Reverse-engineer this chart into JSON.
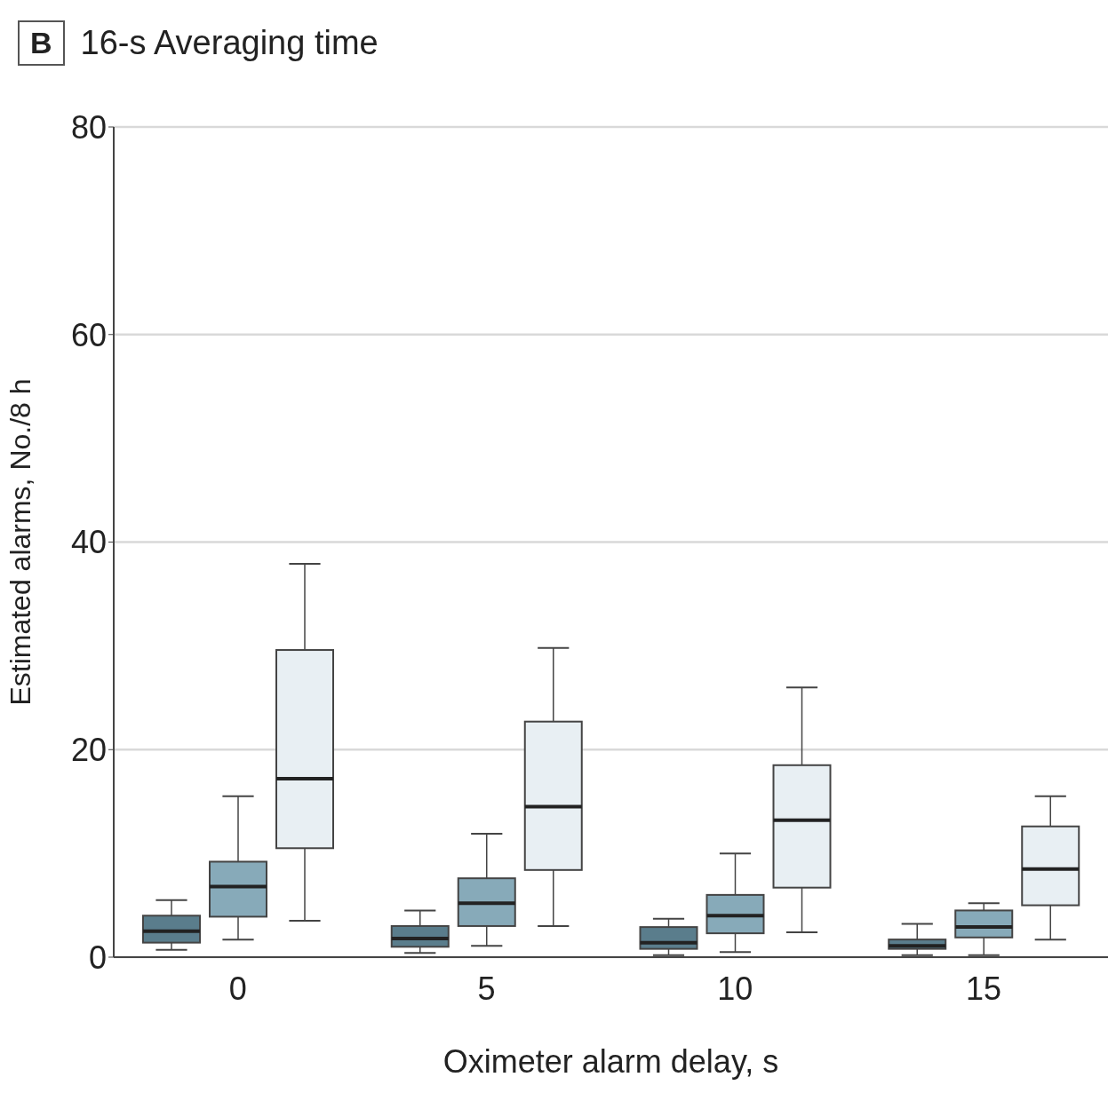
{
  "chart_data": {
    "type": "box",
    "title": "16-s Averaging time",
    "annotations": [
      "B"
    ],
    "xlabel": "Oximeter alarm delay, s",
    "ylabel": "Estimated alarms, No./8 h",
    "categories": [
      "0",
      "5",
      "10",
      "15"
    ],
    "ylim": [
      0,
      80
    ],
    "yticks": [
      0,
      20,
      40,
      60,
      80
    ],
    "grid": "y",
    "series": [
      {
        "color": "#5a7d8c",
        "boxes": [
          {
            "low": 0.7,
            "q1": 1.4,
            "median": 2.5,
            "q3": 4.0,
            "high": 5.5
          },
          {
            "low": 0.4,
            "q1": 1.0,
            "median": 1.8,
            "q3": 3.0,
            "high": 4.5
          },
          {
            "low": 0.2,
            "q1": 0.8,
            "median": 1.4,
            "q3": 2.9,
            "high": 3.7
          },
          {
            "low": 0.2,
            "q1": 0.8,
            "median": 1.1,
            "q3": 1.7,
            "high": 3.2
          }
        ]
      },
      {
        "color": "#87aab9",
        "boxes": [
          {
            "low": 1.7,
            "q1": 3.9,
            "median": 6.8,
            "q3": 9.2,
            "high": 15.5
          },
          {
            "low": 1.1,
            "q1": 3.0,
            "median": 5.2,
            "q3": 7.6,
            "high": 11.9
          },
          {
            "low": 0.5,
            "q1": 2.3,
            "median": 4.0,
            "q3": 6.0,
            "high": 10.0
          },
          {
            "low": 0.2,
            "q1": 1.9,
            "median": 2.9,
            "q3": 4.5,
            "high": 5.2
          }
        ]
      },
      {
        "color": "#e8eff3",
        "boxes": [
          {
            "low": 3.5,
            "q1": 10.5,
            "median": 17.2,
            "q3": 29.6,
            "high": 37.9
          },
          {
            "low": 3.0,
            "q1": 8.4,
            "median": 14.5,
            "q3": 22.7,
            "high": 29.8
          },
          {
            "low": 2.4,
            "q1": 6.7,
            "median": 13.2,
            "q3": 18.5,
            "high": 26.0
          },
          {
            "low": 1.7,
            "q1": 5.0,
            "median": 8.5,
            "q3": 12.6,
            "high": 15.5
          }
        ]
      }
    ]
  }
}
